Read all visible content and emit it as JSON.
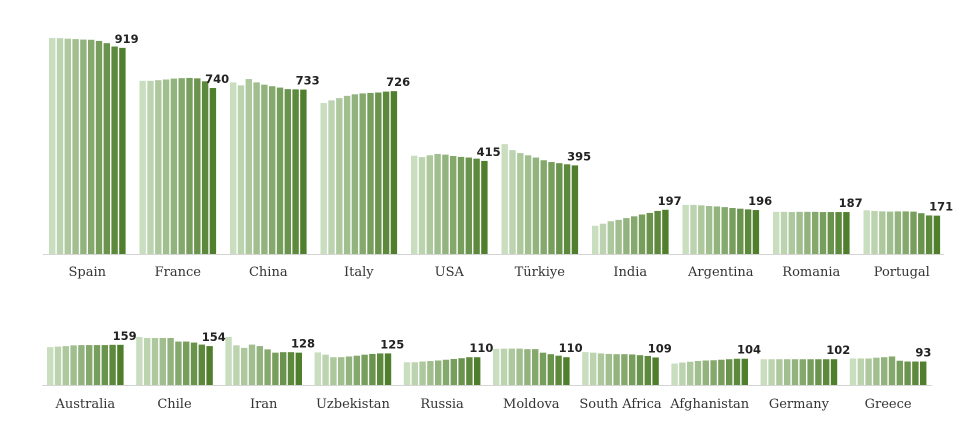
{
  "chart_data": {
    "type": "bar",
    "title": "",
    "colors": [
      "#c9ddbf",
      "#4f7f2c"
    ],
    "rows": [
      {
        "countries": [
          {
            "name": "Spain",
            "label": "919",
            "values": [
              963,
              962,
              960,
              958,
              956,
              955,
              950,
              940,
              925,
              919
            ]
          },
          {
            "name": "France",
            "label": "740",
            "values": [
              772,
              772,
              775,
              778,
              782,
              784,
              785,
              783,
              770,
              740
            ]
          },
          {
            "name": "China",
            "label": "733",
            "values": [
              765,
              752,
              780,
              765,
              755,
              748,
              742,
              735,
              734,
              733
            ]
          },
          {
            "name": "Italy",
            "label": "726",
            "values": [
              673,
              685,
              695,
              705,
              712,
              716,
              718,
              720,
              724,
              726
            ]
          },
          {
            "name": "USA",
            "label": "415",
            "values": [
              438,
              432,
              440,
              446,
              443,
              437,
              433,
              430,
              425,
              415
            ]
          },
          {
            "name": "Türkiye",
            "label": "395",
            "values": [
              490,
              463,
              450,
              440,
              430,
              418,
              410,
              405,
              400,
              395
            ]
          },
          {
            "name": "India",
            "label": "197",
            "values": [
              126,
              135,
              146,
              152,
              160,
              168,
              176,
              183,
              192,
              197
            ]
          },
          {
            "name": "Argentina",
            "label": "196",
            "values": [
              219,
              219,
              217,
              214,
              212,
              209,
              205,
              202,
              199,
              196
            ]
          },
          {
            "name": "Romania",
            "label": "187",
            "values": [
              188,
              188,
              187,
              188,
              188,
              188,
              187,
              187,
              187,
              187
            ]
          },
          {
            "name": "Portugal",
            "label": "171",
            "values": [
              195,
              192,
              190,
              189,
              190,
              190,
              189,
              182,
              172,
              171
            ]
          }
        ]
      },
      {
        "countries": [
          {
            "name": "Australia",
            "label": "159",
            "values": [
              150,
              152,
              154,
              157,
              158,
              158,
              158,
              158,
              159,
              159
            ]
          },
          {
            "name": "Chile",
            "label": "154",
            "values": [
              190,
              186,
              186,
              186,
              186,
              172,
              172,
              168,
              160,
              154
            ]
          },
          {
            "name": "Iran",
            "label": "128",
            "values": [
              190,
              157,
              147,
              160,
              154,
              141,
              128,
              130,
              130,
              128
            ]
          },
          {
            "name": "Uzbekistan",
            "label": "125",
            "values": [
              129,
              120,
              110,
              110,
              113,
              116,
              120,
              123,
              125,
              125
            ]
          },
          {
            "name": "Russia",
            "label": "110",
            "values": [
              90,
              90,
              93,
              95,
              97,
              100,
              103,
              106,
              110,
              110
            ]
          },
          {
            "name": "Moldova",
            "label": "110",
            "values": [
              143,
              144,
              144,
              144,
              142,
              142,
              128,
              122,
              116,
              110
            ]
          },
          {
            "name": "South Africa",
            "label": "109",
            "values": [
              130,
              128,
              125,
              123,
              122,
              122,
              121,
              118,
              115,
              109
            ]
          },
          {
            "name": "Afghanistan",
            "label": "104",
            "values": [
              85,
              89,
              92,
              95,
              97,
              98,
              100,
              102,
              104,
              104
            ]
          },
          {
            "name": "Germany",
            "label": "102",
            "values": [
              102,
              102,
              102,
              102,
              102,
              102,
              102,
              102,
              102,
              102
            ]
          },
          {
            "name": "Greece",
            "label": "93",
            "values": [
              105,
              105,
              105,
              108,
              110,
              113,
              96,
              93,
              93,
              93
            ]
          }
        ]
      }
    ]
  }
}
